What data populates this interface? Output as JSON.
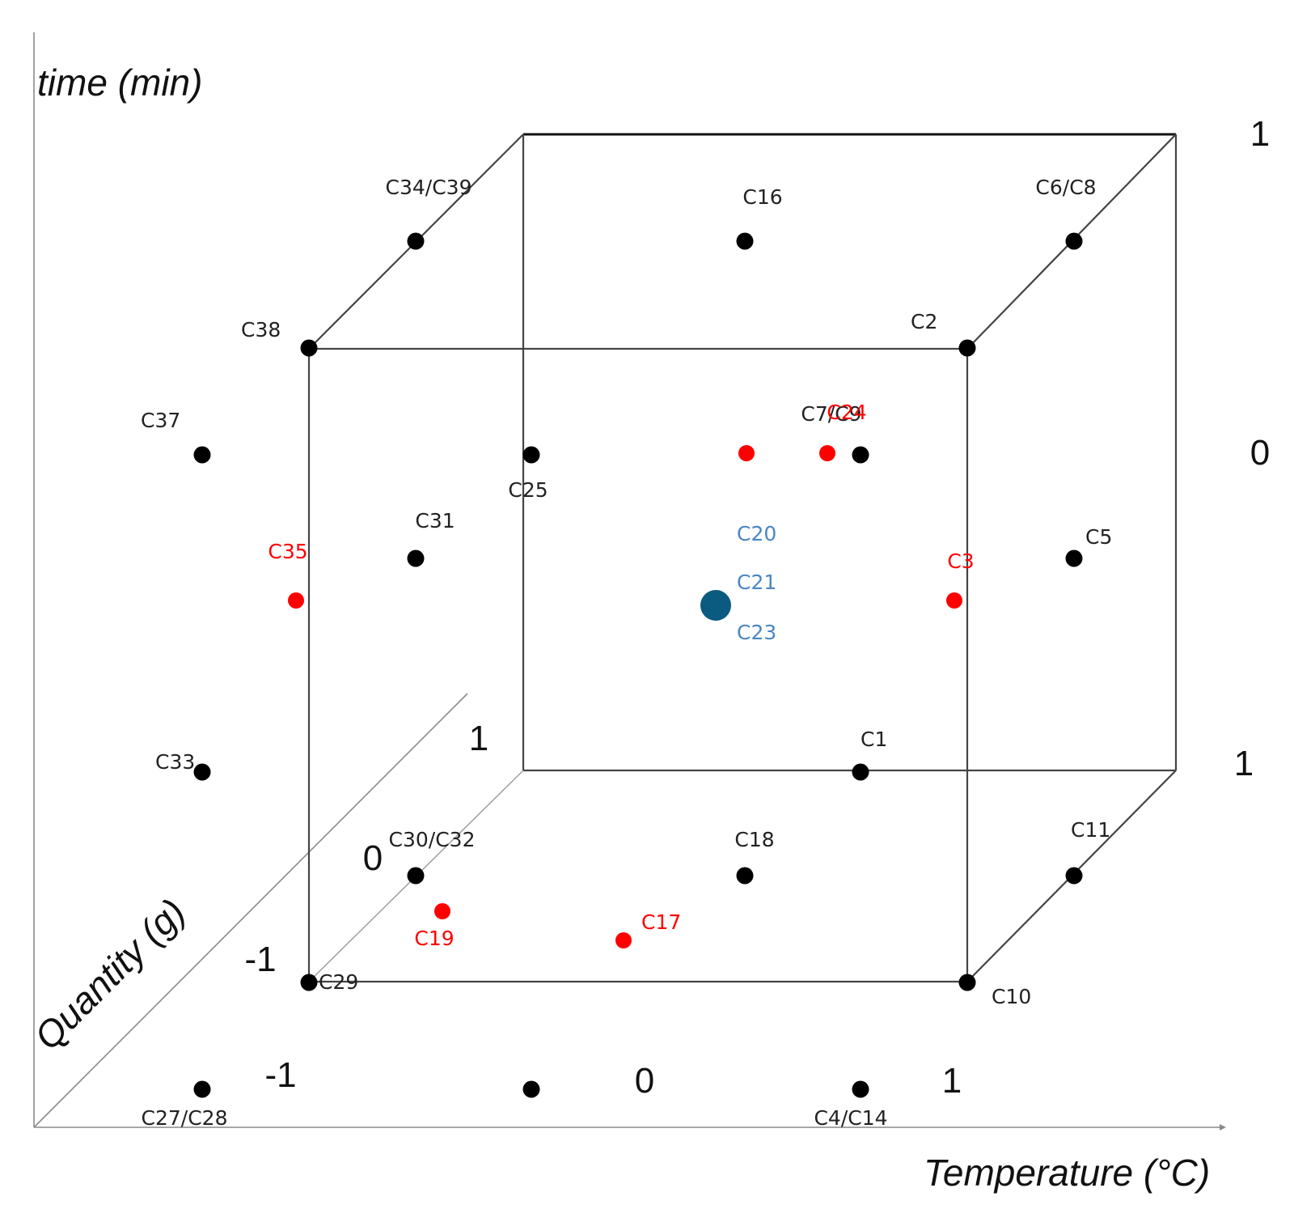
{
  "axes": {
    "z_title": "time (min)",
    "y_title": "Quantity (g)",
    "x_title": "Temperature (°C)",
    "x_ticks": [
      "-1",
      "0",
      "1"
    ],
    "z_ticks_back": [
      "1",
      "0",
      "1"
    ],
    "y_ticks": [
      "1",
      "0",
      "-1"
    ]
  },
  "colors": {
    "factorial": "#000000",
    "axial": "#ff0000",
    "center": "#0b5a80",
    "center_label": "#4a86c5"
  },
  "points": [
    {
      "id": "C34/C39",
      "kind": "factorial",
      "x": -1,
      "y": 1,
      "z": 1
    },
    {
      "id": "C16",
      "kind": "factorial",
      "x": 0,
      "y": 1,
      "z": 1
    },
    {
      "id": "C6/C8",
      "kind": "factorial",
      "x": 1,
      "y": 1,
      "z": 1
    },
    {
      "id": "C38",
      "kind": "factorial",
      "x": -1,
      "y": 0,
      "z": 1
    },
    {
      "id": "C2",
      "kind": "factorial",
      "x": 1,
      "y": 0,
      "z": 1
    },
    {
      "id": "C37",
      "kind": "factorial",
      "x": -1,
      "y": -1,
      "z": 1
    },
    {
      "id": "C25",
      "kind": "factorial",
      "x": 0,
      "y": -1,
      "z": 1
    },
    {
      "id": "C7/C9",
      "kind": "factorial",
      "x": 1,
      "y": -1,
      "z": 1
    },
    {
      "id": "C31",
      "kind": "factorial",
      "x": -1,
      "y": 1,
      "z": 0
    },
    {
      "id": "C5",
      "kind": "factorial",
      "x": 1,
      "y": 1,
      "z": 0
    },
    {
      "id": "C33",
      "kind": "factorial",
      "x": -1,
      "y": -1,
      "z": 0
    },
    {
      "id": "C1",
      "kind": "factorial",
      "x": 1,
      "y": -1,
      "z": 0
    },
    {
      "id": "C30/C32",
      "kind": "factorial",
      "x": -1,
      "y": 1,
      "z": -1
    },
    {
      "id": "C18",
      "kind": "factorial",
      "x": 0,
      "y": 1,
      "z": -1
    },
    {
      "id": "C11",
      "kind": "factorial",
      "x": 1,
      "y": 1,
      "z": -1
    },
    {
      "id": "C29",
      "kind": "factorial",
      "x": -1,
      "y": 0,
      "z": -1
    },
    {
      "id": "C10",
      "kind": "factorial",
      "x": 1,
      "y": 0,
      "z": -1
    },
    {
      "id": "C27/C28",
      "kind": "factorial",
      "x": -1,
      "y": -1,
      "z": -1
    },
    {
      "id": "",
      "kind": "factorial",
      "x": 0,
      "y": -1,
      "z": -1
    },
    {
      "id": "C4/C14",
      "kind": "factorial",
      "x": 1,
      "y": -1,
      "z": -1
    },
    {
      "id": "",
      "kind": "axial",
      "x": 0,
      "y": 0,
      "z": 1
    },
    {
      "id": "C24",
      "kind": "axial",
      "x": 0,
      "y": 1,
      "z": 0
    },
    {
      "id": "C35",
      "kind": "axial",
      "x": -1,
      "y": 0,
      "z": 0
    },
    {
      "id": "C3",
      "kind": "axial",
      "x": 1,
      "y": 0,
      "z": 0
    },
    {
      "id": "C19",
      "kind": "axial",
      "x": 0,
      "y": -1,
      "z": 0
    },
    {
      "id": "C17",
      "kind": "axial",
      "x": 0,
      "y": 0,
      "z": -1
    },
    {
      "id": "C20",
      "kind": "center",
      "x": 0,
      "y": 0,
      "z": 0
    },
    {
      "id": "C21",
      "kind": "center",
      "x": 0,
      "y": 0,
      "z": 0
    },
    {
      "id": "C23",
      "kind": "center",
      "x": 0,
      "y": 0,
      "z": 0
    }
  ]
}
